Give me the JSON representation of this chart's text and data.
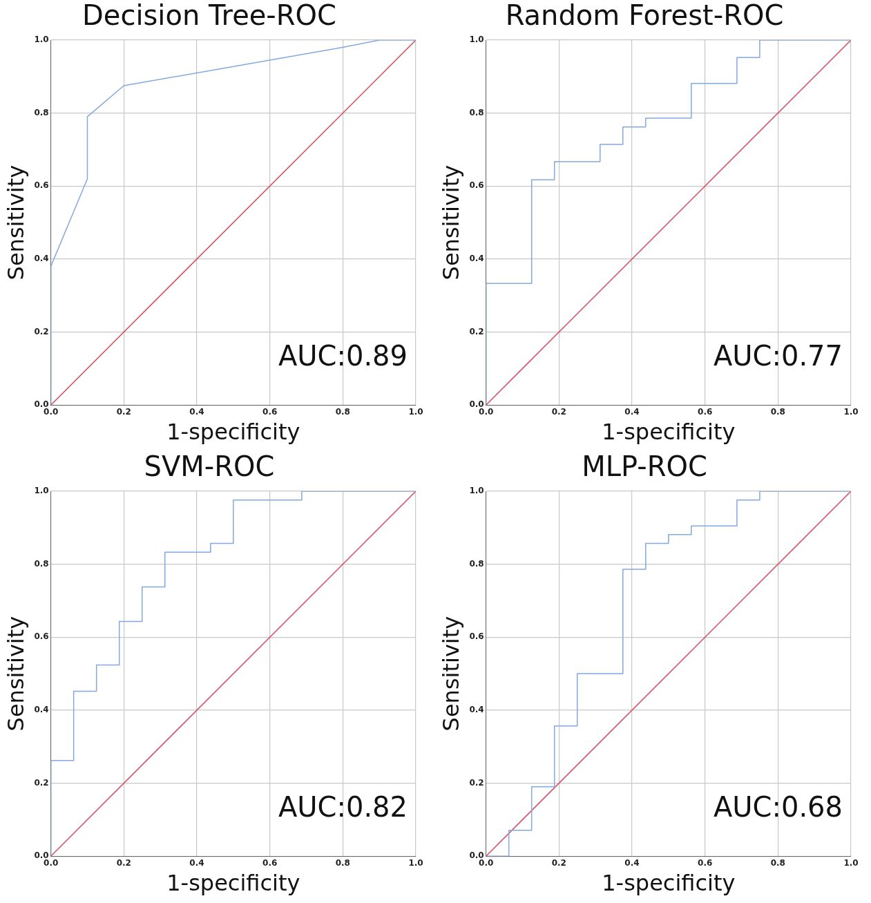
{
  "chart_data": [
    {
      "type": "line",
      "title": "Decision Tree-ROC",
      "xlabel": "1-specificity",
      "ylabel": "Sensitivity",
      "xlim": [
        0,
        1
      ],
      "ylim": [
        0,
        1
      ],
      "xticks": [
        {
          "value": 0,
          "label": "0.0"
        },
        {
          "value": 0.2,
          "label": "0.2"
        },
        {
          "value": 0.4,
          "label": "0.4"
        },
        {
          "value": 0.6,
          "label": "0.6"
        },
        {
          "value": 0.8,
          "label": "0.8"
        },
        {
          "value": 1,
          "label": "1.0"
        }
      ],
      "yticks": [
        {
          "value": 0,
          "label": "0.0"
        },
        {
          "value": 0.2,
          "label": "0.2"
        },
        {
          "value": 0.4,
          "label": "0.4"
        },
        {
          "value": 0.6,
          "label": "0.6"
        },
        {
          "value": 0.8,
          "label": "0.8"
        },
        {
          "value": 1,
          "label": "1.0"
        }
      ],
      "grid": true,
      "legend": false,
      "marker": "none",
      "annotations": [
        "AUC:0.89"
      ],
      "series": [
        {
          "color": "#82a8e0",
          "x": [
            0,
            0,
            0.1,
            0.1,
            0.2,
            0.8,
            0.9,
            1
          ],
          "values": [
            0,
            0.38,
            0.62,
            0.79,
            0.875,
            0.98,
            1,
            1
          ]
        },
        {
          "color": "#d9475f",
          "x": [
            0,
            1
          ],
          "values": [
            0,
            1
          ]
        }
      ]
    },
    {
      "type": "line",
      "title": "Random Forest-ROC",
      "xlabel": "1-specificity",
      "ylabel": "Sensitivity",
      "xlim": [
        0,
        1
      ],
      "ylim": [
        0,
        1
      ],
      "xticks": [
        {
          "value": 0,
          "label": "0.0"
        },
        {
          "value": 0.2,
          "label": "0.2"
        },
        {
          "value": 0.4,
          "label": "0.4"
        },
        {
          "value": 0.6,
          "label": "0.6"
        },
        {
          "value": 0.8,
          "label": "0.8"
        },
        {
          "value": 1,
          "label": "1.0"
        }
      ],
      "yticks": [
        {
          "value": 0,
          "label": "0.0"
        },
        {
          "value": 0.2,
          "label": "0.2"
        },
        {
          "value": 0.4,
          "label": "0.4"
        },
        {
          "value": 0.6,
          "label": "0.6"
        },
        {
          "value": 0.8,
          "label": "0.8"
        },
        {
          "value": 1,
          "label": "1.0"
        }
      ],
      "grid": true,
      "legend": false,
      "marker": "none",
      "annotations": [
        "AUC:0.77"
      ],
      "series": [
        {
          "color": "#82a8e0",
          "x": [
            0,
            0,
            0.125,
            0.125,
            0.1875,
            0.1875,
            0.3125,
            0.3125,
            0.375,
            0.375,
            0.4375,
            0.4375,
            0.5625,
            0.5625,
            0.6875,
            0.6875,
            0.75,
            0.75,
            1
          ],
          "values": [
            0,
            0.333,
            0.333,
            0.617,
            0.617,
            0.667,
            0.667,
            0.714,
            0.714,
            0.762,
            0.762,
            0.786,
            0.786,
            0.881,
            0.881,
            0.952,
            0.952,
            1,
            1
          ]
        },
        {
          "color": "#d9475f",
          "x": [
            0,
            1
          ],
          "values": [
            0,
            1
          ]
        }
      ]
    },
    {
      "type": "line",
      "title": "SVM-ROC",
      "xlabel": "1-specificity",
      "ylabel": "Sensitivity",
      "xlim": [
        0,
        1
      ],
      "ylim": [
        0,
        1
      ],
      "xticks": [
        {
          "value": 0,
          "label": "0.0"
        },
        {
          "value": 0.2,
          "label": "0.2"
        },
        {
          "value": 0.4,
          "label": "0.4"
        },
        {
          "value": 0.6,
          "label": "0.6"
        },
        {
          "value": 0.8,
          "label": "0.8"
        },
        {
          "value": 1,
          "label": "1.0"
        }
      ],
      "yticks": [
        {
          "value": 0,
          "label": "0.0"
        },
        {
          "value": 0.2,
          "label": "0.2"
        },
        {
          "value": 0.4,
          "label": "0.4"
        },
        {
          "value": 0.6,
          "label": "0.6"
        },
        {
          "value": 0.8,
          "label": "0.8"
        },
        {
          "value": 1,
          "label": "1.0"
        }
      ],
      "grid": true,
      "legend": false,
      "marker": "none",
      "annotations": [
        "AUC:0.82"
      ],
      "series": [
        {
          "color": "#82a8e0",
          "x": [
            0,
            0,
            0.0625,
            0.0625,
            0.125,
            0.125,
            0.1875,
            0.1875,
            0.25,
            0.25,
            0.3125,
            0.3125,
            0.4375,
            0.4375,
            0.5,
            0.5,
            0.6875,
            0.6875,
            1
          ],
          "values": [
            0,
            0.262,
            0.262,
            0.452,
            0.452,
            0.524,
            0.524,
            0.643,
            0.643,
            0.738,
            0.738,
            0.833,
            0.833,
            0.857,
            0.857,
            0.976,
            0.976,
            1,
            1
          ]
        },
        {
          "color": "#d9475f",
          "x": [
            0,
            1
          ],
          "values": [
            0,
            1
          ]
        }
      ]
    },
    {
      "type": "line",
      "title": "MLP-ROC",
      "xlabel": "1-specificity",
      "ylabel": "Sensitivity",
      "xlim": [
        0,
        1
      ],
      "ylim": [
        0,
        1
      ],
      "xticks": [
        {
          "value": 0,
          "label": "0.0"
        },
        {
          "value": 0.2,
          "label": "0.2"
        },
        {
          "value": 0.4,
          "label": "0.4"
        },
        {
          "value": 0.6,
          "label": "0.6"
        },
        {
          "value": 0.8,
          "label": "0.8"
        },
        {
          "value": 1,
          "label": "1.0"
        }
      ],
      "yticks": [
        {
          "value": 0,
          "label": "0.0"
        },
        {
          "value": 0.2,
          "label": "0.2"
        },
        {
          "value": 0.4,
          "label": "0.4"
        },
        {
          "value": 0.6,
          "label": "0.6"
        },
        {
          "value": 0.8,
          "label": "0.8"
        },
        {
          "value": 1,
          "label": "1.0"
        }
      ],
      "grid": true,
      "legend": false,
      "marker": "none",
      "annotations": [
        "AUC:0.68"
      ],
      "series": [
        {
          "color": "#82a8e0",
          "x": [
            0,
            0.0625,
            0.0625,
            0.125,
            0.125,
            0.1875,
            0.1875,
            0.25,
            0.25,
            0.375,
            0.375,
            0.4375,
            0.4375,
            0.5,
            0.5,
            0.5625,
            0.5625,
            0.6875,
            0.6875,
            0.75,
            0.75,
            1
          ],
          "values": [
            0,
            0,
            0.071,
            0.071,
            0.19,
            0.19,
            0.357,
            0.357,
            0.5,
            0.5,
            0.786,
            0.786,
            0.857,
            0.857,
            0.881,
            0.881,
            0.905,
            0.905,
            0.976,
            0.976,
            1,
            1
          ]
        },
        {
          "color": "#d9475f",
          "x": [
            0,
            1
          ],
          "values": [
            0,
            1
          ]
        }
      ]
    }
  ]
}
